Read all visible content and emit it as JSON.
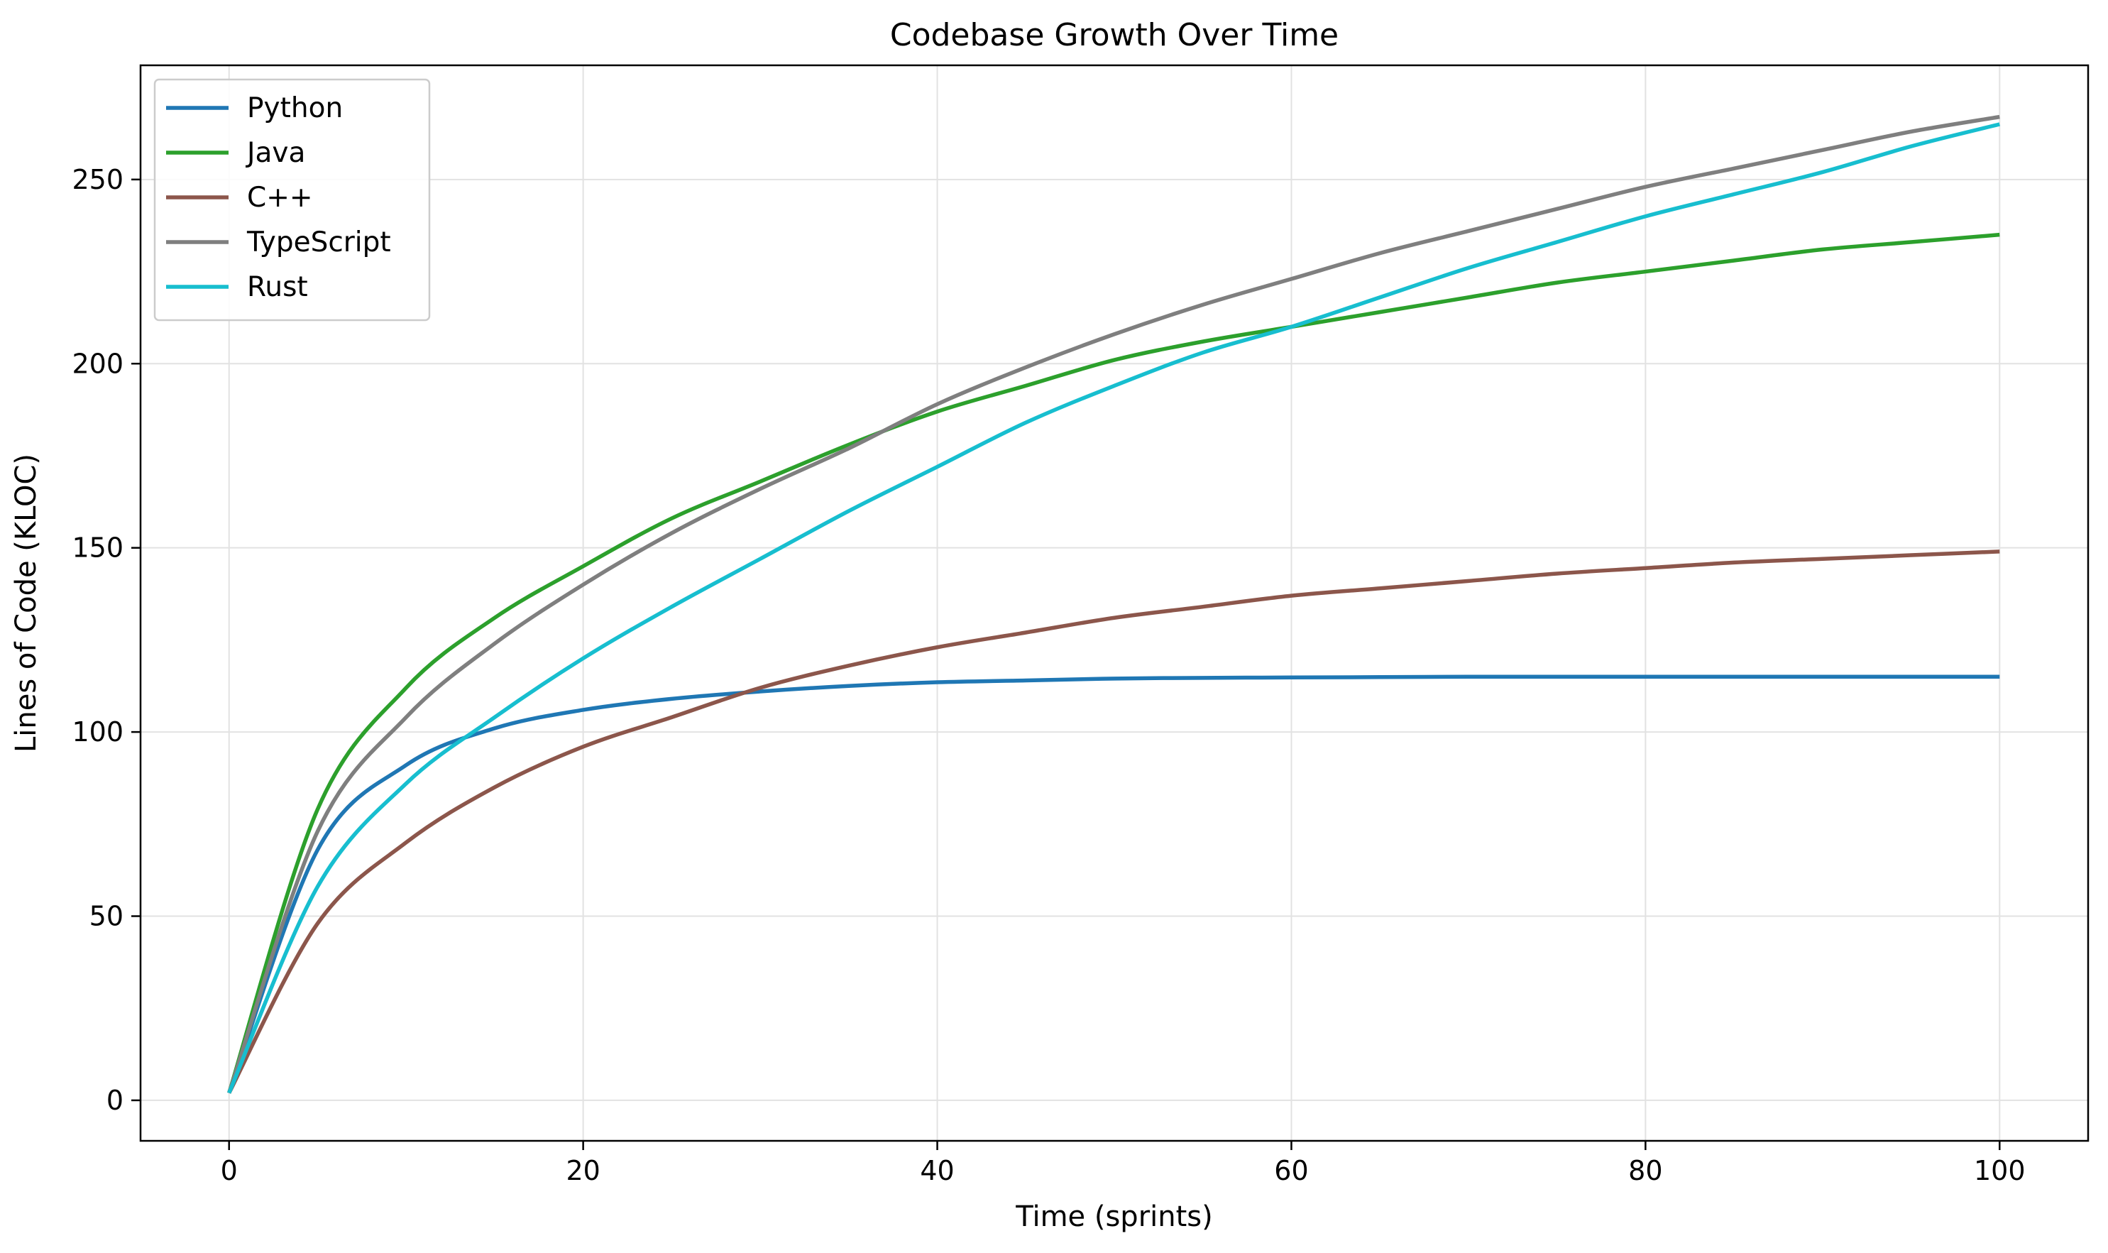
{
  "chart_data": {
    "type": "line",
    "title": "Codebase Growth Over Time",
    "xlabel": "Time (sprints)",
    "ylabel": "Lines of Code (KLOC)",
    "xlim": [
      -5,
      105
    ],
    "ylim": [
      -11,
      281
    ],
    "xticks": [
      0,
      20,
      40,
      60,
      80,
      100
    ],
    "yticks": [
      0,
      50,
      100,
      150,
      200,
      250
    ],
    "grid": true,
    "legend_position": "top-left",
    "x": [
      0,
      5,
      10,
      15,
      20,
      25,
      30,
      35,
      40,
      45,
      50,
      55,
      60,
      65,
      70,
      75,
      80,
      85,
      90,
      95,
      100
    ],
    "series": [
      {
        "name": "Python",
        "color": "#1f77b4",
        "values": [
          2,
          68,
          91,
          101,
          106,
          109,
          111,
          112.5,
          113.5,
          114,
          114.5,
          114.7,
          114.8,
          114.9,
          115,
          115,
          115,
          115,
          115,
          115,
          115
        ]
      },
      {
        "name": "Java",
        "color": "#2ca02c",
        "values": [
          2,
          79,
          112,
          131,
          145,
          158,
          168,
          178,
          187,
          194,
          201,
          206,
          210,
          214,
          218,
          222,
          225,
          228,
          231,
          233,
          235
        ]
      },
      {
        "name": "C++",
        "color": "#8c564b",
        "values": [
          2,
          48,
          70,
          85,
          96,
          104,
          112,
          118,
          123,
          127,
          131,
          134,
          137,
          139,
          141,
          143,
          144.5,
          146,
          147,
          148,
          149
        ]
      },
      {
        "name": "TypeScript",
        "color": "#7f7f7f",
        "values": [
          2,
          73,
          104,
          124,
          140,
          154,
          166,
          177,
          189,
          199,
          208,
          216,
          223,
          230,
          236,
          242,
          248,
          253,
          258,
          263,
          267
        ]
      },
      {
        "name": "Rust",
        "color": "#17becf",
        "values": [
          2,
          58,
          86,
          104,
          120,
          134,
          147,
          160,
          172,
          184,
          194,
          203,
          210,
          218,
          226,
          233,
          240,
          246,
          252,
          259,
          265
        ]
      }
    ]
  }
}
